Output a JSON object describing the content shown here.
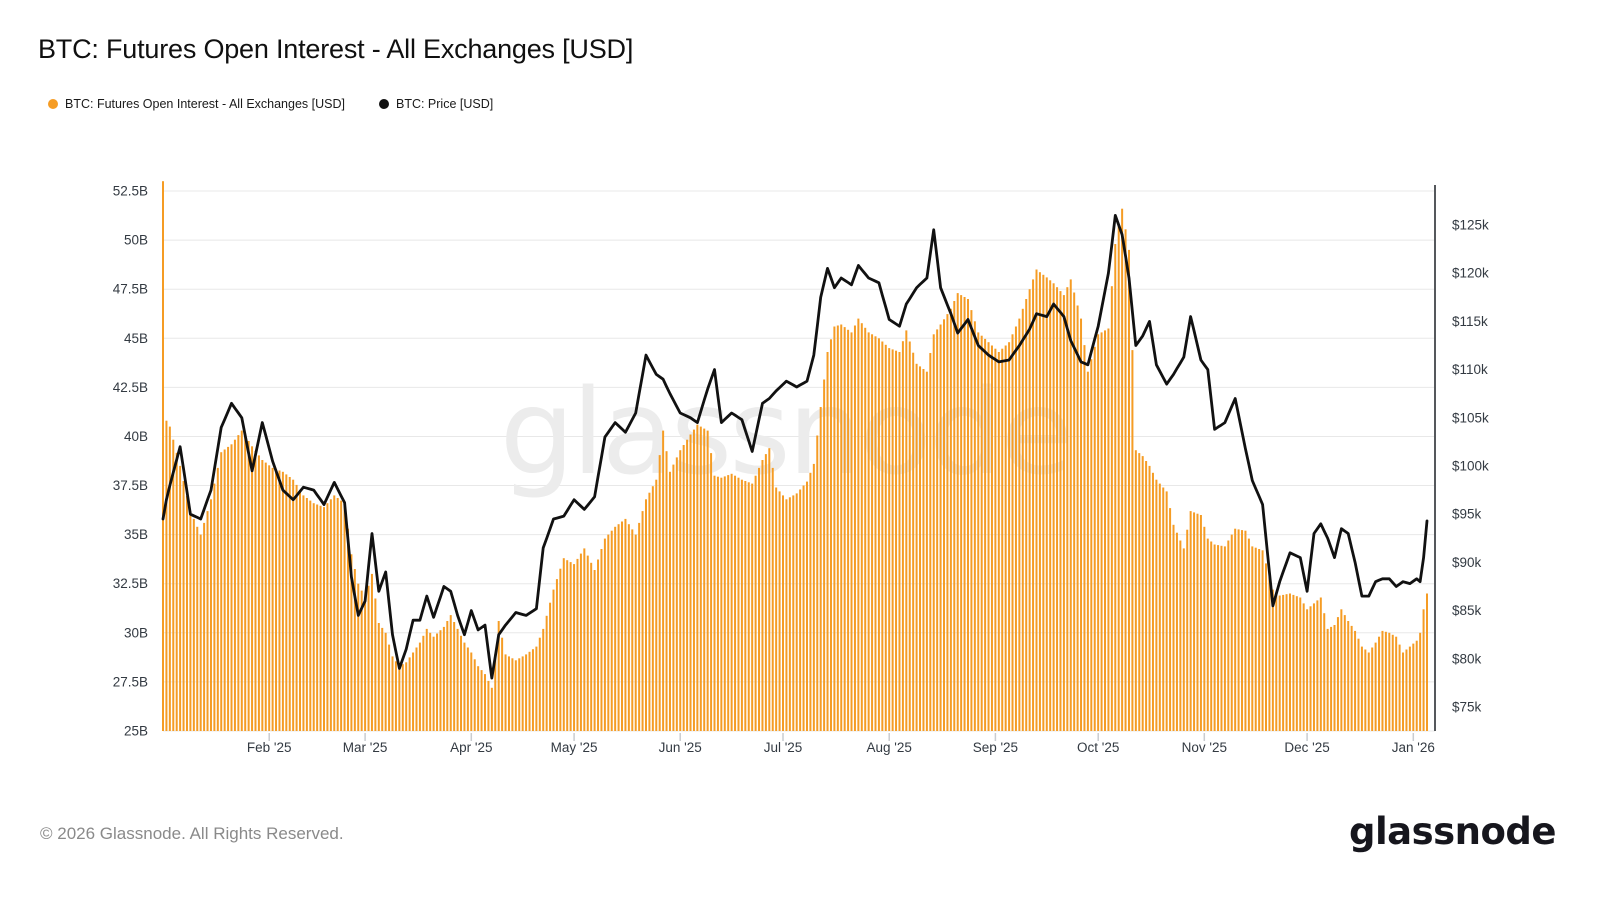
{
  "watermark": {
    "text": "glassnode"
  },
  "footer": {
    "copyright": "© 2026 Glassnode. All Rights Reserved.",
    "brand": "glassnode"
  },
  "colors": {
    "bar": "#F59C24",
    "price_line": "#111111",
    "grid": "#e8e8e8",
    "right_axis_line": "#55585C",
    "tick_label": "#333A42",
    "watermark": "#ECECEC",
    "month_tick": "#c9ccd0"
  },
  "chart_data": {
    "type": "bar",
    "title": "BTC: Futures Open Interest - All Exchanges [USD]",
    "grid": true,
    "legend_position": "top-left",
    "series": [
      {
        "name": "BTC: Futures Open Interest - All Exchanges [USD]",
        "type": "bar",
        "axis": "left",
        "unit": "billion USD",
        "color": "#F59C24"
      },
      {
        "name": "BTC: Price [USD]",
        "type": "line",
        "axis": "right",
        "unit": "thousand USD",
        "color": "#111111"
      }
    ],
    "left_axis": {
      "min": 25,
      "max": 52.5,
      "step": 2.5,
      "tick_labels": [
        "52.5B",
        "50B",
        "47.5B",
        "45B",
        "42.5B",
        "40B",
        "37.5B",
        "35B",
        "32.5B",
        "30B",
        "27.5B",
        "25B"
      ],
      "tick_values": [
        52.5,
        50,
        47.5,
        45,
        42.5,
        40,
        37.5,
        35,
        32.5,
        30,
        27.5,
        25
      ]
    },
    "right_axis": {
      "min": 75,
      "max": 125,
      "step": 5,
      "tick_labels": [
        "$125k",
        "$120k",
        "$115k",
        "$110k",
        "$105k",
        "$100k",
        "$95k",
        "$90k",
        "$85k",
        "$80k",
        "$75k"
      ],
      "tick_values": [
        125,
        120,
        115,
        110,
        105,
        100,
        95,
        90,
        85,
        80,
        75
      ]
    },
    "x_axis": {
      "ticks": [
        {
          "label": "Feb '25",
          "day": 31
        },
        {
          "label": "Mar '25",
          "day": 59
        },
        {
          "label": "Apr '25",
          "day": 90
        },
        {
          "label": "May '25",
          "day": 120
        },
        {
          "label": "Jun '25",
          "day": 151
        },
        {
          "label": "Jul '25",
          "day": 181
        },
        {
          "label": "Aug '25",
          "day": 212
        },
        {
          "label": "Sep '25",
          "day": 243
        },
        {
          "label": "Oct '25",
          "day": 273
        },
        {
          "label": "Nov '25",
          "day": 304
        },
        {
          "label": "Dec '25",
          "day": 334
        },
        {
          "label": "Jan '26",
          "day": 365
        }
      ]
    },
    "points_format": [
      "day_index_from_2025-01-01",
      "date",
      "open_interest_billion_usd",
      "price_thousand_usd"
    ],
    "points": [
      [
        0,
        "2025-01-01",
        53.0,
        94.5
      ],
      [
        1,
        "2025-01-02",
        40.8,
        96.5
      ],
      [
        2,
        "2025-01-03",
        40.5,
        98.0
      ],
      [
        5,
        "2025-01-06",
        38.5,
        102.0
      ],
      [
        8,
        "2025-01-09",
        36.2,
        95.0
      ],
      [
        11,
        "2025-01-12",
        35.0,
        94.5
      ],
      [
        14,
        "2025-01-15",
        36.8,
        97.5
      ],
      [
        17,
        "2025-01-18",
        39.2,
        104.0
      ],
      [
        20,
        "2025-01-21",
        39.6,
        106.5
      ],
      [
        23,
        "2025-01-24",
        40.3,
        105.0
      ],
      [
        26,
        "2025-01-27",
        39.5,
        99.5
      ],
      [
        29,
        "2025-01-30",
        38.8,
        104.5
      ],
      [
        32,
        "2025-02-02",
        38.4,
        100.5
      ],
      [
        35,
        "2025-02-05",
        38.2,
        97.5
      ],
      [
        38,
        "2025-02-08",
        37.8,
        96.5
      ],
      [
        41,
        "2025-02-11",
        37.0,
        97.8
      ],
      [
        44,
        "2025-02-14",
        36.6,
        97.5
      ],
      [
        47,
        "2025-02-17",
        36.4,
        96.0
      ],
      [
        50,
        "2025-02-20",
        37.0,
        98.3
      ],
      [
        53,
        "2025-02-23",
        36.6,
        96.2
      ],
      [
        55,
        "2025-02-25",
        34.0,
        88.5
      ],
      [
        57,
        "2025-02-27",
        32.5,
        84.5
      ],
      [
        59,
        "2025-03-01",
        31.8,
        86.0
      ],
      [
        61,
        "2025-03-03",
        33.0,
        93.0
      ],
      [
        63,
        "2025-03-05",
        30.5,
        87.0
      ],
      [
        65,
        "2025-03-07",
        30.0,
        89.0
      ],
      [
        67,
        "2025-03-09",
        28.8,
        82.5
      ],
      [
        69,
        "2025-03-11",
        28.3,
        79.0
      ],
      [
        71,
        "2025-03-13",
        28.5,
        81.0
      ],
      [
        73,
        "2025-03-15",
        29.0,
        84.0
      ],
      [
        75,
        "2025-03-17",
        29.5,
        84.0
      ],
      [
        77,
        "2025-03-19",
        30.2,
        86.5
      ],
      [
        79,
        "2025-03-21",
        29.8,
        84.3
      ],
      [
        82,
        "2025-03-24",
        30.3,
        87.5
      ],
      [
        84,
        "2025-03-26",
        30.9,
        87.0
      ],
      [
        86,
        "2025-03-28",
        30.2,
        84.5
      ],
      [
        88,
        "2025-03-30",
        29.5,
        82.5
      ],
      [
        90,
        "2025-04-01",
        29.0,
        85.0
      ],
      [
        92,
        "2025-04-03",
        28.3,
        83.0
      ],
      [
        94,
        "2025-04-05",
        27.9,
        83.5
      ],
      [
        96,
        "2025-04-07",
        27.2,
        78.0
      ],
      [
        98,
        "2025-04-09",
        30.6,
        82.5
      ],
      [
        100,
        "2025-04-11",
        28.9,
        83.5
      ],
      [
        103,
        "2025-04-14",
        28.6,
        84.8
      ],
      [
        106,
        "2025-04-17",
        28.9,
        84.5
      ],
      [
        109,
        "2025-04-20",
        29.3,
        85.2
      ],
      [
        111,
        "2025-04-22",
        30.2,
        91.5
      ],
      [
        114,
        "2025-04-25",
        32.2,
        94.5
      ],
      [
        117,
        "2025-04-28",
        33.8,
        94.8
      ],
      [
        120,
        "2025-05-01",
        33.5,
        96.5
      ],
      [
        123,
        "2025-05-04",
        34.3,
        95.5
      ],
      [
        126,
        "2025-05-07",
        33.2,
        96.8
      ],
      [
        129,
        "2025-05-10",
        34.8,
        103.0
      ],
      [
        132,
        "2025-05-13",
        35.4,
        104.5
      ],
      [
        135,
        "2025-05-16",
        35.8,
        103.5
      ],
      [
        138,
        "2025-05-19",
        35.0,
        105.5
      ],
      [
        141,
        "2025-05-22",
        36.8,
        111.5
      ],
      [
        144,
        "2025-05-25",
        37.8,
        109.5
      ],
      [
        146,
        "2025-05-27",
        40.3,
        109.0
      ],
      [
        148,
        "2025-05-29",
        38.2,
        107.5
      ],
      [
        151,
        "2025-06-01",
        39.3,
        105.5
      ],
      [
        154,
        "2025-06-04",
        40.1,
        105.0
      ],
      [
        156,
        "2025-06-06",
        40.6,
        104.5
      ],
      [
        159,
        "2025-06-09",
        40.3,
        108.0
      ],
      [
        161,
        "2025-06-11",
        38.0,
        110.0
      ],
      [
        163,
        "2025-06-13",
        37.9,
        104.5
      ],
      [
        166,
        "2025-06-16",
        38.1,
        105.5
      ],
      [
        169,
        "2025-06-19",
        37.8,
        104.8
      ],
      [
        172,
        "2025-06-22",
        37.6,
        101.5
      ],
      [
        175,
        "2025-06-25",
        38.8,
        106.5
      ],
      [
        177,
        "2025-06-27",
        39.4,
        107.0
      ],
      [
        179,
        "2025-06-29",
        37.4,
        107.8
      ],
      [
        182,
        "2025-07-02",
        36.8,
        108.8
      ],
      [
        185,
        "2025-07-05",
        37.1,
        108.2
      ],
      [
        188,
        "2025-07-08",
        37.7,
        108.8
      ],
      [
        190,
        "2025-07-10",
        38.6,
        111.5
      ],
      [
        192,
        "2025-07-12",
        41.5,
        117.5
      ],
      [
        194,
        "2025-07-14",
        44.3,
        120.5
      ],
      [
        196,
        "2025-07-16",
        45.6,
        118.5
      ],
      [
        198,
        "2025-07-18",
        45.7,
        119.5
      ],
      [
        201,
        "2025-07-21",
        45.3,
        118.8
      ],
      [
        203,
        "2025-07-23",
        46.0,
        120.8
      ],
      [
        206,
        "2025-07-26",
        45.3,
        119.5
      ],
      [
        209,
        "2025-07-29",
        45.0,
        119.0
      ],
      [
        212,
        "2025-08-01",
        44.5,
        115.2
      ],
      [
        215,
        "2025-08-04",
        44.3,
        114.5
      ],
      [
        217,
        "2025-08-06",
        45.4,
        116.8
      ],
      [
        220,
        "2025-08-09",
        43.7,
        118.5
      ],
      [
        223,
        "2025-08-12",
        43.3,
        119.5
      ],
      [
        225,
        "2025-08-14",
        45.2,
        124.5
      ],
      [
        227,
        "2025-08-16",
        45.7,
        118.5
      ],
      [
        230,
        "2025-08-19",
        46.5,
        115.8
      ],
      [
        232,
        "2025-08-21",
        47.3,
        113.8
      ],
      [
        235,
        "2025-08-24",
        47.0,
        115.2
      ],
      [
        238,
        "2025-08-27",
        45.3,
        112.5
      ],
      [
        241,
        "2025-08-30",
        44.8,
        111.5
      ],
      [
        244,
        "2025-09-02",
        44.3,
        110.8
      ],
      [
        247,
        "2025-09-05",
        44.8,
        111.0
      ],
      [
        250,
        "2025-09-08",
        46.0,
        112.5
      ],
      [
        253,
        "2025-09-11",
        47.5,
        114.2
      ],
      [
        255,
        "2025-09-13",
        48.5,
        115.8
      ],
      [
        258,
        "2025-09-16",
        48.1,
        115.5
      ],
      [
        260,
        "2025-09-18",
        47.8,
        116.8
      ],
      [
        263,
        "2025-09-21",
        47.2,
        115.5
      ],
      [
        265,
        "2025-09-23",
        48.0,
        113.0
      ],
      [
        268,
        "2025-09-26",
        46.0,
        110.8
      ],
      [
        270,
        "2025-09-28",
        43.3,
        110.5
      ],
      [
        273,
        "2025-10-01",
        45.2,
        114.5
      ],
      [
        276,
        "2025-10-04",
        45.5,
        120.0
      ],
      [
        278,
        "2025-10-06",
        49.8,
        126.0
      ],
      [
        280,
        "2025-10-08",
        51.6,
        124.0
      ],
      [
        282,
        "2025-10-10",
        49.5,
        119.5
      ],
      [
        284,
        "2025-10-12",
        39.3,
        112.5
      ],
      [
        286,
        "2025-10-14",
        39.0,
        113.5
      ],
      [
        288,
        "2025-10-16",
        38.5,
        115.0
      ],
      [
        290,
        "2025-10-18",
        37.8,
        110.5
      ],
      [
        293,
        "2025-10-21",
        37.2,
        108.5
      ],
      [
        295,
        "2025-10-23",
        35.5,
        109.5
      ],
      [
        298,
        "2025-10-26",
        34.3,
        111.3
      ],
      [
        300,
        "2025-10-28",
        36.2,
        115.5
      ],
      [
        303,
        "2025-10-31",
        36.0,
        111.0
      ],
      [
        305,
        "2025-11-02",
        34.8,
        110.0
      ],
      [
        307,
        "2025-11-04",
        34.5,
        103.8
      ],
      [
        310,
        "2025-11-07",
        34.4,
        104.5
      ],
      [
        313,
        "2025-11-10",
        35.3,
        107.0
      ],
      [
        316,
        "2025-11-13",
        35.2,
        101.8
      ],
      [
        318,
        "2025-11-15",
        34.4,
        98.5
      ],
      [
        321,
        "2025-11-18",
        34.2,
        96.0
      ],
      [
        324,
        "2025-11-21",
        32.2,
        85.5
      ],
      [
        326,
        "2025-11-23",
        31.9,
        88.0
      ],
      [
        329,
        "2025-11-26",
        32.0,
        91.0
      ],
      [
        332,
        "2025-11-29",
        31.8,
        90.5
      ],
      [
        334,
        "2025-12-01",
        31.2,
        87.0
      ],
      [
        336,
        "2025-12-03",
        31.5,
        93.0
      ],
      [
        338,
        "2025-12-05",
        31.8,
        94.0
      ],
      [
        340,
        "2025-12-07",
        30.2,
        92.5
      ],
      [
        342,
        "2025-12-09",
        30.4,
        90.5
      ],
      [
        344,
        "2025-12-11",
        31.2,
        93.5
      ],
      [
        346,
        "2025-12-13",
        30.6,
        93.0
      ],
      [
        348,
        "2025-12-15",
        30.1,
        90.0
      ],
      [
        350,
        "2025-12-17",
        29.3,
        86.5
      ],
      [
        352,
        "2025-12-19",
        29.0,
        86.5
      ],
      [
        354,
        "2025-12-21",
        29.5,
        88.0
      ],
      [
        356,
        "2025-12-23",
        30.1,
        88.3
      ],
      [
        358,
        "2025-12-25",
        30.0,
        88.3
      ],
      [
        360,
        "2025-12-27",
        29.8,
        87.5
      ],
      [
        362,
        "2025-12-29",
        29.0,
        88.0
      ],
      [
        364,
        "2025-12-31",
        29.3,
        87.8
      ],
      [
        366,
        "2026-01-02",
        29.6,
        88.3
      ],
      [
        367,
        "2026-01-03",
        30.0,
        88.0
      ],
      [
        368,
        "2026-01-04",
        31.2,
        90.5
      ],
      [
        369,
        "2026-01-05",
        32.0,
        94.3
      ]
    ]
  }
}
